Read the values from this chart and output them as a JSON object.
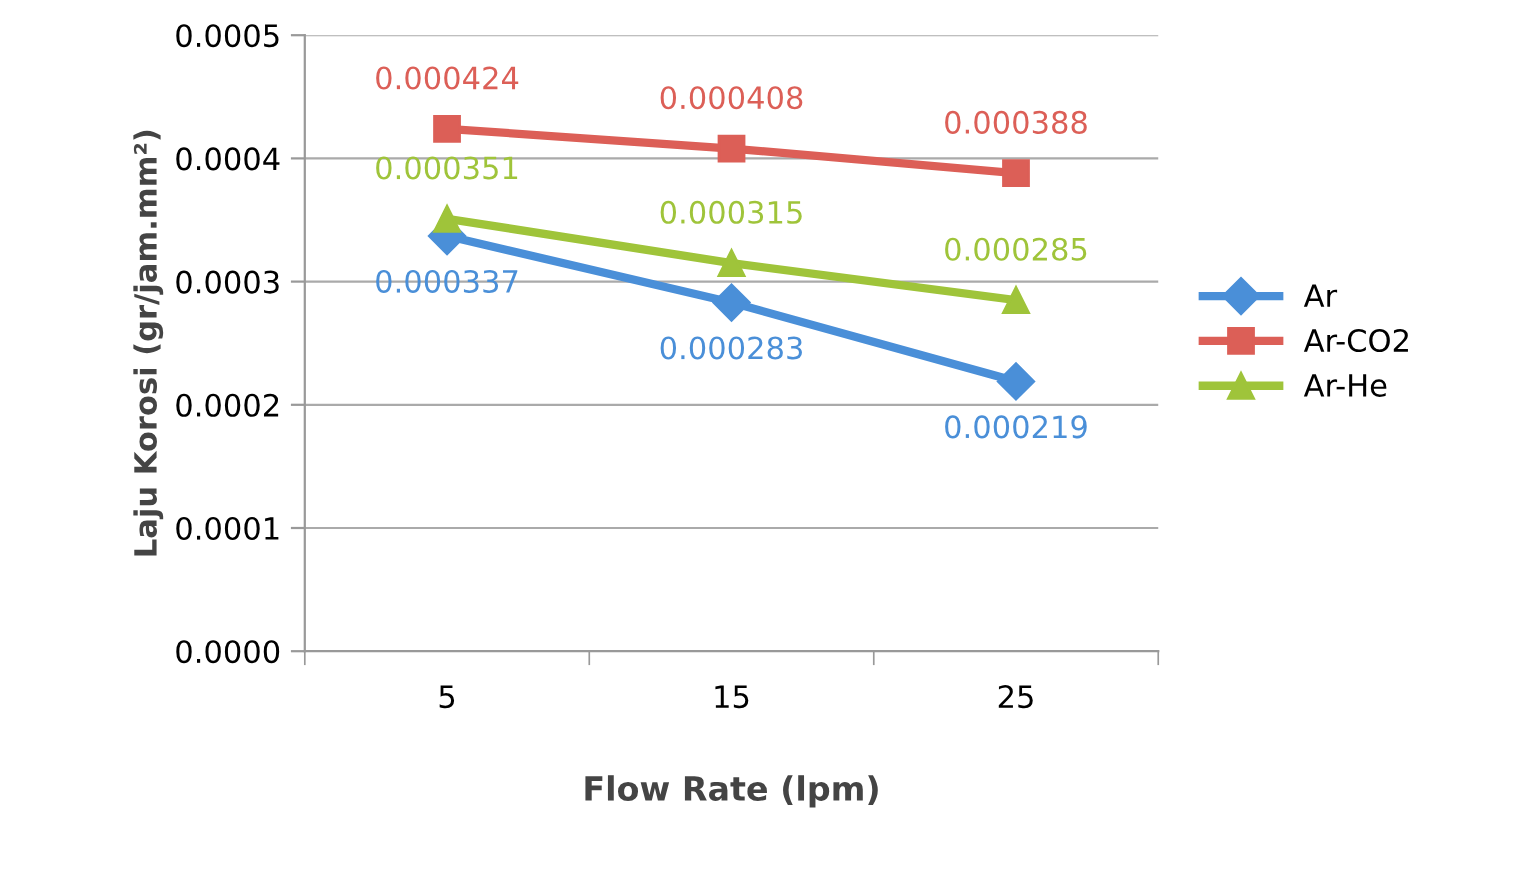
{
  "chart_data": {
    "type": "line",
    "xlabel": "Flow Rate (lpm)",
    "ylabel": "Laju Korosi (gr/jam.mm²)",
    "categories": [
      "5",
      "15",
      "25"
    ],
    "series": [
      {
        "name": "Ar",
        "color": "#4a8fd8",
        "marker": "diamond",
        "values": [
          0.000337,
          0.000283,
          0.000219
        ]
      },
      {
        "name": "Ar-CO2",
        "color": "#dc5f57",
        "marker": "square",
        "values": [
          0.000424,
          0.000408,
          0.000388
        ]
      },
      {
        "name": "Ar-He",
        "color": "#9fc43a",
        "marker": "triangle",
        "values": [
          0.000351,
          0.000315,
          0.000285
        ]
      }
    ],
    "ylim": [
      0,
      0.0005
    ],
    "yticks": [
      {
        "value": 0,
        "label": "0.0000"
      },
      {
        "value": 0.0001,
        "label": "0.0001"
      },
      {
        "value": 0.0002,
        "label": "0.0002"
      },
      {
        "value": 0.0003,
        "label": "0.0003"
      },
      {
        "value": 0.0004,
        "label": "0.0004"
      },
      {
        "value": 0.0005,
        "label": "0.0005"
      }
    ],
    "grid": "y",
    "legend": "right",
    "data_labels": true,
    "line_style": "solid"
  }
}
